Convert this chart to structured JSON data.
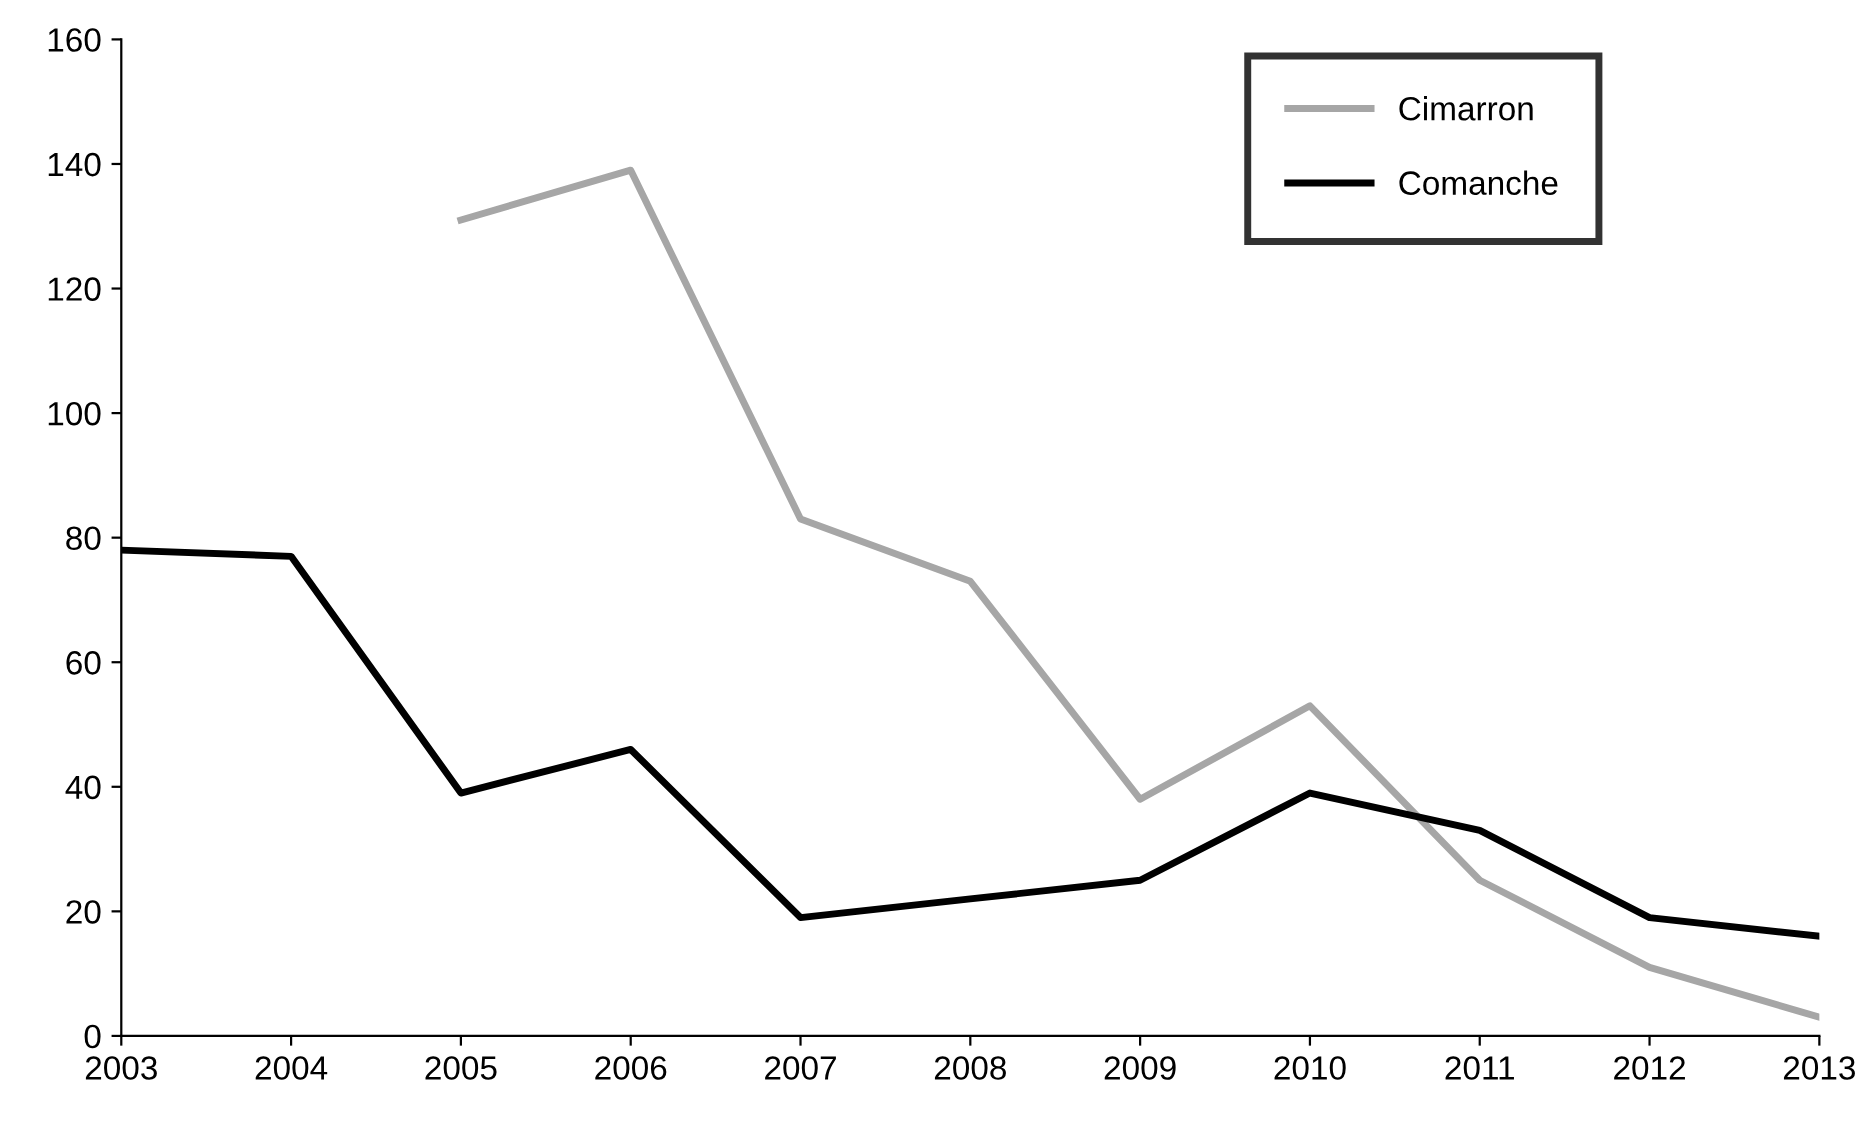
{
  "chart_data": {
    "type": "line",
    "x": [
      2003,
      2004,
      2005,
      2006,
      2007,
      2008,
      2009,
      2010,
      2011,
      2012,
      2013
    ],
    "series": [
      {
        "name": "Cimarron",
        "color": "#a6a6a6",
        "values": [
          null,
          null,
          131,
          139,
          83,
          73,
          38,
          53,
          25,
          11,
          3
        ]
      },
      {
        "name": "Comanche",
        "color": "#000000",
        "values": [
          78,
          77,
          39,
          46,
          19,
          22,
          25,
          39,
          33,
          19,
          16
        ]
      }
    ],
    "xlim": [
      2003,
      2013
    ],
    "xticks": [
      2003,
      2004,
      2005,
      2006,
      2007,
      2008,
      2009,
      2010,
      2011,
      2012,
      2013
    ],
    "ylim": [
      0,
      160
    ],
    "yticks": [
      0,
      20,
      40,
      60,
      80,
      100,
      120,
      140,
      160
    ],
    "grid": false,
    "legend": "top right",
    "marker": "none",
    "line_style": "solid"
  }
}
